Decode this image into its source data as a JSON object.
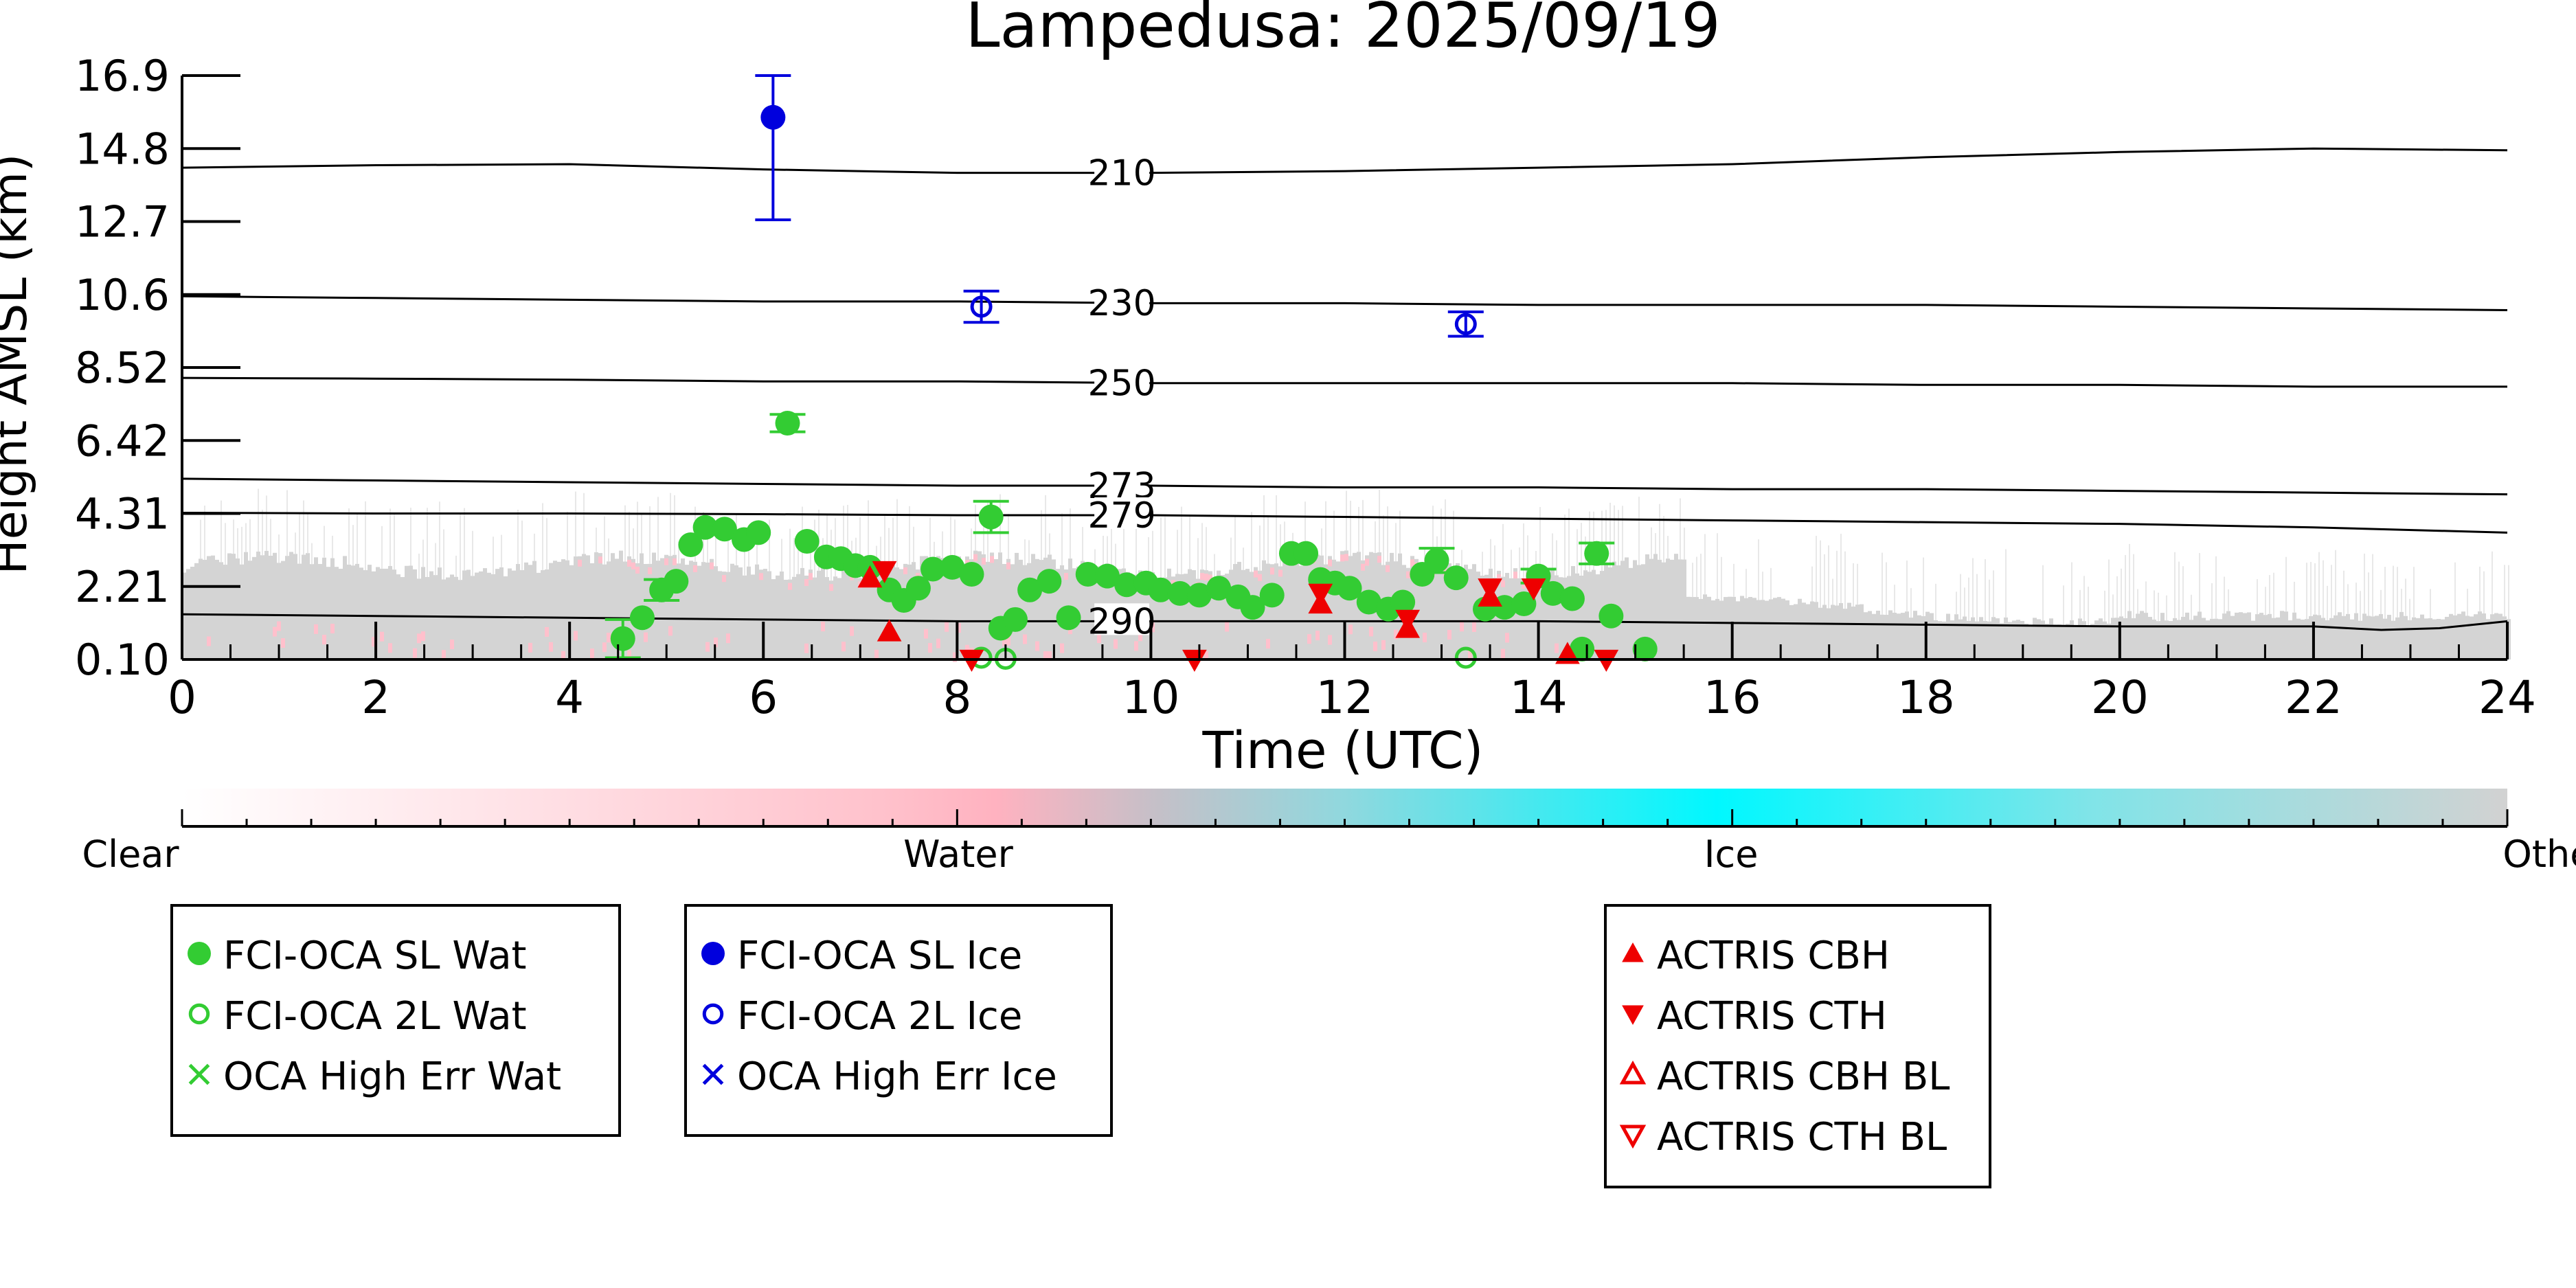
{
  "chart_data": {
    "type": "scatter",
    "title": "Lampedusa: 2025/09/19",
    "xlabel": "Time (UTC)",
    "ylabel": "Height AMSL (km)",
    "xlim": [
      0,
      24
    ],
    "ylim": [
      0.1,
      16.9
    ],
    "x_ticks": [
      "0",
      "2",
      "4",
      "6",
      "8",
      "10",
      "12",
      "14",
      "16",
      "18",
      "20",
      "22",
      "24"
    ],
    "y_ticks": [
      "0.10",
      "2.21",
      "4.31",
      "6.42",
      "8.52",
      "10.6",
      "12.7",
      "14.8",
      "16.9"
    ],
    "grid": false,
    "colors": {
      "sl_wat": "#33cc33",
      "ice": "#0000dd",
      "actris": "#ee0000",
      "curtain_gray": "#d4d4d4",
      "curtain_pink": "#ffc0cc"
    },
    "temperature_contours": [
      {
        "label": "210",
        "x": [
          0,
          2,
          4,
          6,
          8,
          10,
          12,
          14,
          16,
          18,
          20,
          22,
          24
        ],
        "y": [
          14.25,
          14.32,
          14.35,
          14.2,
          14.1,
          14.1,
          14.15,
          14.25,
          14.35,
          14.55,
          14.7,
          14.8,
          14.75
        ]
      },
      {
        "label": "230",
        "x": [
          0,
          2,
          4,
          6,
          8,
          10,
          12,
          14,
          16,
          18,
          20,
          22,
          24
        ],
        "y": [
          10.55,
          10.5,
          10.45,
          10.4,
          10.4,
          10.35,
          10.35,
          10.3,
          10.3,
          10.3,
          10.25,
          10.2,
          10.15
        ]
      },
      {
        "label": "250",
        "x": [
          0,
          2,
          4,
          6,
          8,
          10,
          12,
          14,
          16,
          18,
          20,
          22,
          24
        ],
        "y": [
          8.2,
          8.18,
          8.15,
          8.1,
          8.1,
          8.05,
          8.05,
          8.05,
          8.05,
          8.0,
          8.0,
          7.95,
          7.95
        ]
      },
      {
        "label": "273",
        "x": [
          0,
          2,
          4,
          6,
          8,
          10,
          12,
          14,
          16,
          18,
          20,
          22,
          24
        ],
        "y": [
          5.3,
          5.25,
          5.2,
          5.15,
          5.1,
          5.1,
          5.05,
          5.05,
          5.0,
          5.0,
          4.95,
          4.9,
          4.85
        ]
      },
      {
        "label": "279",
        "x": [
          0,
          2,
          4,
          6,
          8,
          10,
          12,
          14,
          16,
          18,
          20,
          22,
          24
        ],
        "y": [
          4.32,
          4.3,
          4.3,
          4.28,
          4.25,
          4.25,
          4.2,
          4.15,
          4.1,
          4.05,
          4.0,
          3.9,
          3.75
        ]
      },
      {
        "label": "290",
        "x": [
          0,
          2,
          4,
          6,
          8,
          10,
          12,
          14,
          16,
          18,
          20,
          22,
          22.7,
          23.3,
          24
        ],
        "y": [
          1.4,
          1.35,
          1.3,
          1.25,
          1.2,
          1.2,
          1.2,
          1.2,
          1.15,
          1.1,
          1.05,
          1.05,
          0.95,
          1.0,
          1.2
        ]
      }
    ],
    "series": [
      {
        "name": "FCI-OCA SL Wat",
        "marker": "filled-circle",
        "x": [
          4.55,
          4.75,
          4.95,
          5.1,
          5.25,
          5.4,
          5.6,
          5.8,
          5.95,
          6.25,
          6.45,
          6.65,
          6.8,
          6.95,
          7.1,
          7.3,
          7.45,
          7.6,
          7.75,
          7.95,
          8.15,
          8.35,
          8.45,
          8.6,
          8.75,
          8.95,
          9.15,
          9.35,
          9.55,
          9.75,
          9.95,
          10.1,
          10.3,
          10.5,
          10.7,
          10.9,
          11.05,
          11.25,
          11.45,
          11.6,
          11.75,
          11.9,
          12.05,
          12.25,
          12.45,
          12.6,
          12.8,
          12.95,
          13.15,
          13.45,
          13.65,
          13.85,
          14.0,
          14.15,
          14.35,
          14.45,
          14.6,
          14.75,
          15.1
        ],
        "y": [
          0.7,
          1.3,
          2.1,
          2.35,
          3.4,
          3.9,
          3.85,
          3.55,
          3.75,
          6.9,
          3.5,
          3.05,
          3.0,
          2.8,
          2.75,
          2.1,
          1.8,
          2.15,
          2.7,
          2.75,
          2.55,
          4.2,
          1.0,
          1.25,
          2.1,
          2.35,
          1.3,
          2.55,
          2.5,
          2.25,
          2.3,
          2.1,
          2.0,
          1.95,
          2.15,
          1.9,
          1.6,
          1.95,
          3.15,
          3.15,
          2.4,
          2.3,
          2.15,
          1.75,
          1.55,
          1.75,
          2.55,
          2.95,
          2.45,
          1.55,
          1.6,
          1.7,
          2.5,
          2.0,
          1.85,
          0.4,
          3.15,
          1.35,
          0.4
        ],
        "err": [
          0.55,
          0,
          0.3,
          0,
          0,
          0,
          0,
          0,
          0,
          0.25,
          0,
          0,
          0,
          0,
          0,
          0,
          0,
          0,
          0,
          0,
          0,
          0.45,
          0,
          0,
          0,
          0,
          0,
          0,
          0,
          0,
          0,
          0,
          0,
          0,
          0,
          0,
          0,
          0,
          0,
          0,
          0,
          0,
          0,
          0,
          0,
          0,
          0,
          0.35,
          0,
          0,
          0,
          0,
          0.2,
          0,
          0,
          0,
          0.3,
          0,
          0
        ]
      },
      {
        "name": "FCI-OCA 2L Wat",
        "marker": "open-circle",
        "x": [
          8.25,
          8.5,
          13.25
        ],
        "y": [
          0.15,
          0.12,
          0.15
        ],
        "err": [
          0,
          0,
          0
        ]
      },
      {
        "name": "OCA High Err Wat",
        "marker": "x",
        "x": [],
        "y": []
      },
      {
        "name": "FCI-OCA SL Ice",
        "marker": "filled-circle",
        "x": [
          6.1
        ],
        "y": [
          15.7
        ],
        "err_low": [
          12.75
        ],
        "err_high": [
          16.9
        ]
      },
      {
        "name": "FCI-OCA 2L Ice",
        "marker": "open-circle",
        "x": [
          8.25,
          13.25
        ],
        "y": [
          10.25,
          9.75
        ],
        "err": [
          0.45,
          0.35
        ]
      },
      {
        "name": "OCA High Err Ice",
        "marker": "x",
        "x": [],
        "y": []
      },
      {
        "name": "ACTRIS CBH",
        "marker": "triangle-up-filled",
        "x": [
          7.1,
          7.3,
          11.75,
          12.65,
          13.5,
          14.3
        ],
        "y": [
          2.45,
          0.9,
          1.7,
          1.0,
          1.9,
          0.25
        ]
      },
      {
        "name": "ACTRIS CTH",
        "marker": "triangle-down-filled",
        "x": [
          7.25,
          8.15,
          10.45,
          11.75,
          12.65,
          13.5,
          13.95,
          14.7
        ],
        "y": [
          2.65,
          0.1,
          0.1,
          2.0,
          1.25,
          2.15,
          2.15,
          0.1
        ]
      },
      {
        "name": "ACTRIS CBH BL",
        "marker": "triangle-up-open",
        "x": [],
        "y": []
      },
      {
        "name": "ACTRIS CTH BL",
        "marker": "triangle-down-open",
        "x": [],
        "y": []
      }
    ],
    "colorbar": {
      "labels": [
        "Clear",
        "Water",
        "Ice",
        "Other"
      ],
      "colors": [
        "#ffffff",
        "#ffb0c0",
        "#00f8ff",
        "#d2d2d2"
      ]
    },
    "legend_groups": [
      {
        "entries": [
          "FCI-OCA SL Wat",
          "FCI-OCA 2L Wat",
          "OCA High Err Wat"
        ]
      },
      {
        "entries": [
          "FCI-OCA SL Ice",
          "FCI-OCA 2L Ice",
          "OCA High Err Ice"
        ]
      },
      {
        "entries": [
          "ACTRIS CBH",
          "ACTRIS CTH",
          "ACTRIS CBH BL",
          "ACTRIS CTH BL"
        ]
      }
    ]
  }
}
